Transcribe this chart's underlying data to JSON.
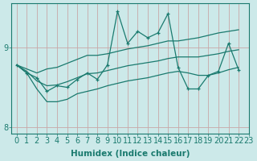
{
  "xlabel": "Humidex (Indice chaleur)",
  "ylabel": "",
  "background_color": "#cce9e9",
  "line_color": "#1a7a6e",
  "grid_color": "#b8d8d8",
  "xlim": [
    -0.5,
    23
  ],
  "ylim": [
    7.92,
    9.55
  ],
  "x_main": [
    0,
    1,
    2,
    3,
    4,
    5,
    6,
    7,
    8,
    9,
    10,
    11,
    12,
    13,
    14,
    15,
    16,
    17,
    18,
    19,
    20,
    21,
    22
  ],
  "y_main": [
    8.78,
    8.68,
    8.62,
    8.45,
    8.52,
    8.5,
    8.6,
    8.68,
    8.6,
    8.78,
    9.45,
    9.05,
    9.2,
    9.12,
    9.18,
    9.42,
    8.75,
    8.48,
    8.48,
    8.65,
    8.7,
    9.05,
    8.72
  ],
  "x_upper": [
    0,
    1,
    2,
    3,
    4,
    5,
    6,
    7,
    8,
    9,
    10,
    11,
    12,
    13,
    14,
    15,
    16,
    17,
    18,
    19,
    20,
    21,
    22
  ],
  "y_upper": [
    8.78,
    8.73,
    8.68,
    8.73,
    8.75,
    8.8,
    8.85,
    8.9,
    8.9,
    8.92,
    8.95,
    8.98,
    9.0,
    9.02,
    9.05,
    9.08,
    9.08,
    9.1,
    9.12,
    9.15,
    9.18,
    9.2,
    9.22
  ],
  "x_lower": [
    0,
    1,
    2,
    3,
    4,
    5,
    6,
    7,
    8,
    9,
    10,
    11,
    12,
    13,
    14,
    15,
    16,
    17,
    18,
    19,
    20,
    21,
    22
  ],
  "y_lower": [
    8.78,
    8.68,
    8.48,
    8.32,
    8.32,
    8.35,
    8.42,
    8.45,
    8.48,
    8.52,
    8.55,
    8.58,
    8.6,
    8.62,
    8.65,
    8.68,
    8.7,
    8.68,
    8.65,
    8.65,
    8.68,
    8.72,
    8.75
  ],
  "x_mid": [
    0,
    1,
    2,
    3,
    4,
    5,
    6,
    7,
    8,
    9,
    10,
    11,
    12,
    13,
    14,
    15,
    16,
    17,
    18,
    19,
    20,
    21,
    22
  ],
  "y_mid": [
    8.78,
    8.7,
    8.58,
    8.52,
    8.53,
    8.57,
    8.62,
    8.67,
    8.68,
    8.71,
    8.74,
    8.77,
    8.79,
    8.81,
    8.83,
    8.86,
    8.88,
    8.88,
    8.88,
    8.9,
    8.92,
    8.95,
    8.97
  ],
  "yticks": [
    8,
    9
  ],
  "xticks": [
    0,
    1,
    2,
    3,
    4,
    5,
    6,
    7,
    8,
    9,
    10,
    11,
    12,
    13,
    14,
    15,
    16,
    17,
    18,
    19,
    20,
    21,
    22,
    23
  ],
  "fontsize_label": 7.5,
  "fontsize_tick": 7
}
